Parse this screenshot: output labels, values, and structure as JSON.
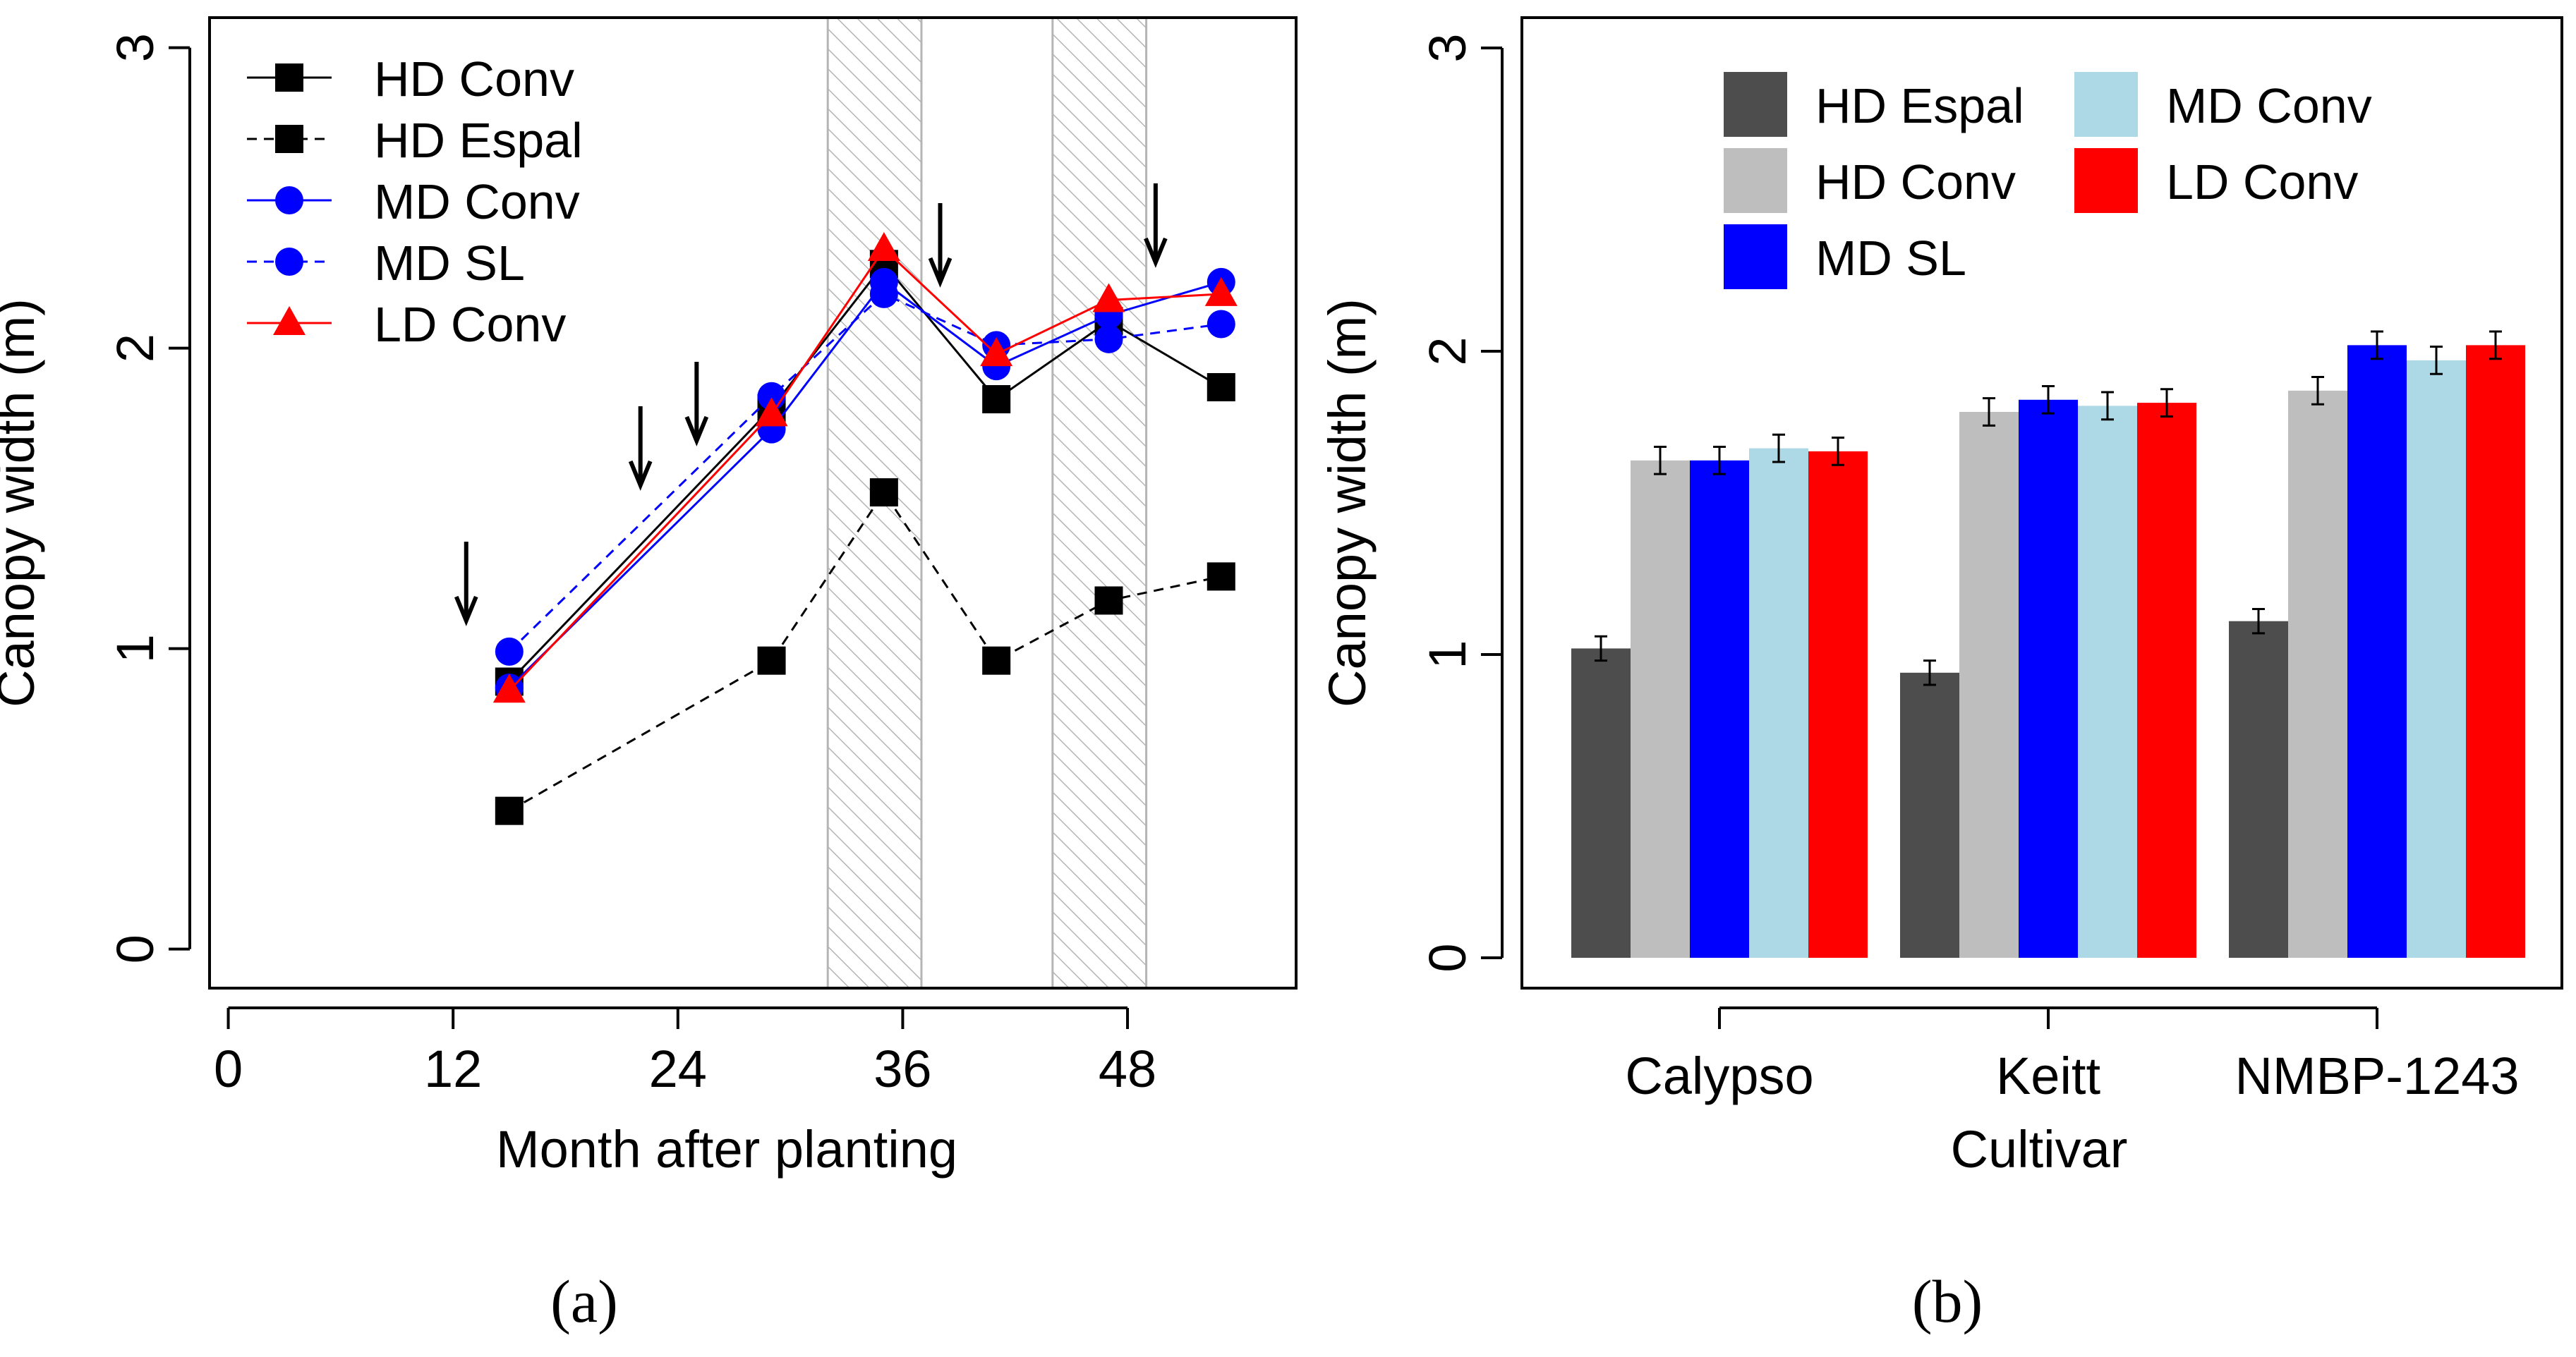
{
  "charts": {
    "a": {
      "caption": "(a)",
      "ylabel": "Canopy width (m)",
      "xlabel": "Month after planting"
    },
    "b": {
      "caption": "(b)",
      "ylabel": "Canopy width (m)",
      "xlabel": "Cultivar"
    }
  },
  "chart_data": [
    {
      "id": "a",
      "type": "line",
      "title": "",
      "xlabel": "Month after planting",
      "ylabel": "Canopy width (m)",
      "xlim": [
        -1,
        57
      ],
      "ylim": [
        -0.13,
        3.1
      ],
      "xticks": [
        0,
        12,
        24,
        36,
        48
      ],
      "yticks": [
        0,
        1,
        2,
        3
      ],
      "legend_position": "top-left",
      "shaded_periods": [
        [
          32,
          37
        ],
        [
          44,
          49
        ]
      ],
      "arrows_at_month": [
        12.7,
        22,
        25,
        38,
        49.5
      ],
      "series": [
        {
          "name": "HD Conv",
          "color": "#000000",
          "marker": "square",
          "dash": "solid",
          "x": [
            15,
            29,
            35,
            41,
            47,
            53
          ],
          "values": [
            0.89,
            1.8,
            2.28,
            1.83,
            2.09,
            1.87
          ]
        },
        {
          "name": "HD Espal",
          "color": "#000000",
          "marker": "square",
          "dash": "dashed",
          "x": [
            15,
            29,
            35,
            41,
            47,
            53
          ],
          "values": [
            0.46,
            0.96,
            1.52,
            0.96,
            1.16,
            1.24
          ]
        },
        {
          "name": "MD Conv",
          "color": "#0000ff",
          "marker": "circle",
          "dash": "solid",
          "x": [
            15,
            29,
            35,
            41,
            47,
            53
          ],
          "values": [
            0.87,
            1.73,
            2.22,
            1.94,
            2.11,
            2.22
          ]
        },
        {
          "name": "MD SL",
          "color": "#0000ff",
          "marker": "circle",
          "dash": "dashed",
          "x": [
            15,
            29,
            35,
            41,
            47,
            53
          ],
          "values": [
            0.99,
            1.84,
            2.18,
            2.01,
            2.03,
            2.08
          ]
        },
        {
          "name": "LD Conv",
          "color": "#ff0000",
          "marker": "triangle",
          "dash": "solid",
          "x": [
            15,
            29,
            35,
            41,
            47,
            53
          ],
          "values": [
            0.86,
            1.78,
            2.33,
            1.98,
            2.16,
            2.18
          ]
        }
      ]
    },
    {
      "id": "b",
      "type": "bar",
      "title": "",
      "xlabel": "Cultivar",
      "ylabel": "Canopy width (m)",
      "ylim": [
        -0.1,
        3.1
      ],
      "yticks": [
        0,
        1,
        2,
        3
      ],
      "legend_position": "top",
      "legend_order": [
        "HD Espal",
        "HD Conv",
        "MD SL",
        "MD Conv",
        "LD Conv"
      ],
      "categories": [
        "Calypso",
        "Keitt",
        "NMBP-1243"
      ],
      "series": [
        {
          "name": "HD Espal",
          "color": "#4d4d4d",
          "values": [
            1.02,
            0.94,
            1.11
          ],
          "errors": [
            0.04,
            0.04,
            0.04
          ]
        },
        {
          "name": "HD Conv",
          "color": "#bebebe",
          "values": [
            1.64,
            1.8,
            1.87
          ],
          "errors": [
            0.045,
            0.045,
            0.045
          ]
        },
        {
          "name": "MD SL",
          "color": "#0000ff",
          "values": [
            1.64,
            1.84,
            2.02
          ],
          "errors": [
            0.045,
            0.045,
            0.045
          ]
        },
        {
          "name": "MD Conv",
          "color": "#add8e6",
          "values": [
            1.68,
            1.82,
            1.97
          ],
          "errors": [
            0.045,
            0.045,
            0.045
          ]
        },
        {
          "name": "LD Conv",
          "color": "#ff0000",
          "values": [
            1.67,
            1.83,
            2.02
          ],
          "errors": [
            0.045,
            0.045,
            0.045
          ]
        }
      ]
    }
  ]
}
